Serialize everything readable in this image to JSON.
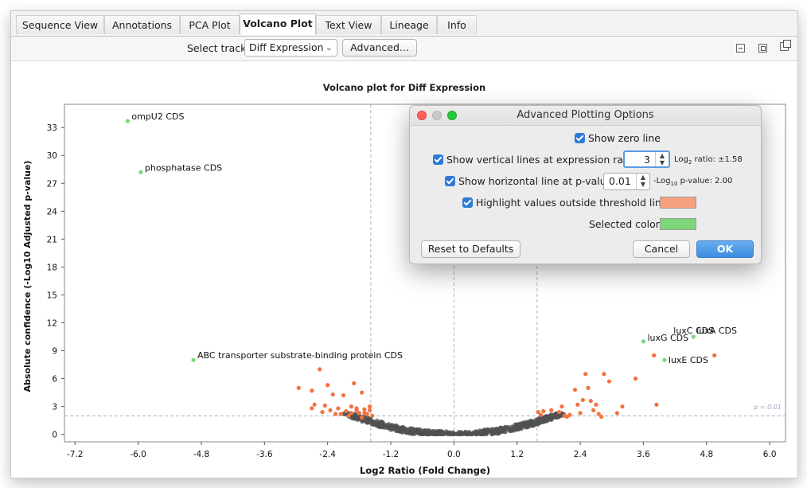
{
  "tabs": [
    {
      "label": "Sequence View",
      "active": false
    },
    {
      "label": "Annotations",
      "active": false
    },
    {
      "label": "PCA Plot",
      "active": false
    },
    {
      "label": "Volcano Plot",
      "active": true
    },
    {
      "label": "Text View",
      "active": false
    },
    {
      "label": "Lineage",
      "active": false
    },
    {
      "label": "Info",
      "active": false
    }
  ],
  "toolbar": {
    "select_track_label": "Select track:",
    "track_value": "Diff Expression",
    "advanced_button": "Advanced..."
  },
  "plot": {
    "title": "Volcano plot for Diff Expression",
    "xlabel": "Log2 Ratio (Fold Change)",
    "ylabel": "Absolute confidence (-Log10 Adjusted p-value)",
    "pvalue_label": "p = 0.01"
  },
  "chart_data": {
    "type": "scatter",
    "title": "Volcano plot for Diff Expression",
    "xlabel": "Log2 Ratio (Fold Change)",
    "ylabel": "Absolute confidence (-Log10 Adjusted p-value)",
    "xlim": [
      -7.4,
      6.3
    ],
    "ylim": [
      -0.8,
      35.5
    ],
    "xticks": [
      -7.2,
      -6.0,
      -4.8,
      -3.6,
      -2.4,
      -1.2,
      0.0,
      1.2,
      2.4,
      3.6,
      4.8,
      6.0
    ],
    "yticks": [
      0,
      3,
      6,
      9,
      12,
      15,
      18,
      21,
      24,
      27,
      30,
      33
    ],
    "vertical_lines": [
      -1.58,
      0.0,
      1.58
    ],
    "horizontal_line": 2.0,
    "colors": {
      "default": "#505050",
      "highlight": "#f4713f",
      "selected": "#7dd67d"
    },
    "labeled_points": [
      {
        "label": "ompU2 CDS",
        "x": -6.2,
        "y": 33.7
      },
      {
        "label": "phosphatase CDS",
        "x": -5.95,
        "y": 28.2
      },
      {
        "label": "ABC transporter substrate-binding protein CDS",
        "x": -4.95,
        "y": 8.0
      },
      {
        "label": "luxC CDS",
        "x": 4.55,
        "y": 10.5
      },
      {
        "label": "luxG CDS",
        "x": 3.6,
        "y": 10.0
      },
      {
        "label": "luxE CDS",
        "x": 4.0,
        "y": 8.0
      },
      {
        "label": "luxA CDS",
        "x": 4.55,
        "y": 10.5
      }
    ],
    "highlight_points": [
      [
        -2.95,
        5.0
      ],
      [
        -2.7,
        4.7
      ],
      [
        -2.65,
        3.2
      ],
      [
        -2.7,
        2.8
      ],
      [
        -2.45,
        3.1
      ],
      [
        -2.4,
        5.3
      ],
      [
        -2.55,
        7.0
      ],
      [
        -2.35,
        2.6
      ],
      [
        -2.25,
        2.2
      ],
      [
        -2.2,
        2.8
      ],
      [
        -2.1,
        4.2
      ],
      [
        -2.05,
        2.5
      ],
      [
        -2.0,
        2.0
      ],
      [
        -1.95,
        3.0
      ],
      [
        -1.9,
        5.5
      ],
      [
        -1.85,
        2.6
      ],
      [
        -1.8,
        2.3
      ],
      [
        -1.75,
        4.5
      ],
      [
        -1.7,
        2.7
      ],
      [
        -1.65,
        2.2
      ],
      [
        -1.6,
        3.0
      ],
      [
        -2.3,
        4.3
      ],
      [
        -2.15,
        2.2
      ],
      [
        -1.95,
        2.3
      ],
      [
        -1.85,
        2.8
      ],
      [
        -1.7,
        2.3
      ],
      [
        -1.6,
        2.6
      ],
      [
        -1.55,
        2.0
      ],
      [
        -2.5,
        2.4
      ],
      [
        -1.75,
        1.8
      ],
      [
        1.6,
        2.4
      ],
      [
        1.65,
        2.1
      ],
      [
        1.85,
        2.6
      ],
      [
        2.05,
        3.0
      ],
      [
        2.1,
        2.0
      ],
      [
        2.15,
        1.9
      ],
      [
        2.3,
        4.8
      ],
      [
        2.35,
        3.2
      ],
      [
        2.45,
        3.7
      ],
      [
        2.5,
        6.5
      ],
      [
        2.55,
        5.0
      ],
      [
        2.6,
        3.6
      ],
      [
        2.65,
        2.6
      ],
      [
        2.7,
        3.2
      ],
      [
        2.75,
        2.2
      ],
      [
        2.85,
        6.5
      ],
      [
        2.95,
        5.7
      ],
      [
        3.2,
        3.0
      ],
      [
        3.45,
        6.0
      ],
      [
        3.85,
        3.2
      ],
      [
        3.8,
        8.5
      ],
      [
        4.95,
        8.5
      ],
      [
        2.2,
        2.1
      ],
      [
        2.4,
        2.3
      ],
      [
        1.7,
        2.5
      ],
      [
        2.0,
        2.4
      ],
      [
        2.8,
        1.9
      ],
      [
        3.1,
        2.3
      ]
    ],
    "selected_points": [
      [
        -6.2,
        33.7
      ],
      [
        -5.95,
        28.2
      ],
      [
        -4.95,
        8.0
      ],
      [
        3.6,
        10.0
      ],
      [
        4.0,
        8.0
      ],
      [
        4.55,
        10.5
      ]
    ]
  },
  "dialog": {
    "title": "Advanced Plotting Options",
    "show_zero_line": "Show zero line",
    "show_vertical_lines": "Show vertical lines at expression ratio:",
    "vertical_value": "3",
    "log2_ratio_prefix": "Log",
    "log2_ratio_sub": "2",
    "log2_ratio_suffix": " ratio: ±1.58",
    "show_horizontal_line": "Show horizontal line at p-value:",
    "horizontal_value": "0.01",
    "log10_prefix": "-Log",
    "log10_sub": "10",
    "log10_suffix": " p-value: 2.00",
    "highlight_values": "Highlight values outside threshold lines:",
    "highlight_color": "#f7a07f",
    "selected_color_label": "Selected color:",
    "selected_color": "#7ed67a",
    "reset_button": "Reset to Defaults",
    "cancel_button": "Cancel",
    "ok_button": "OK"
  }
}
